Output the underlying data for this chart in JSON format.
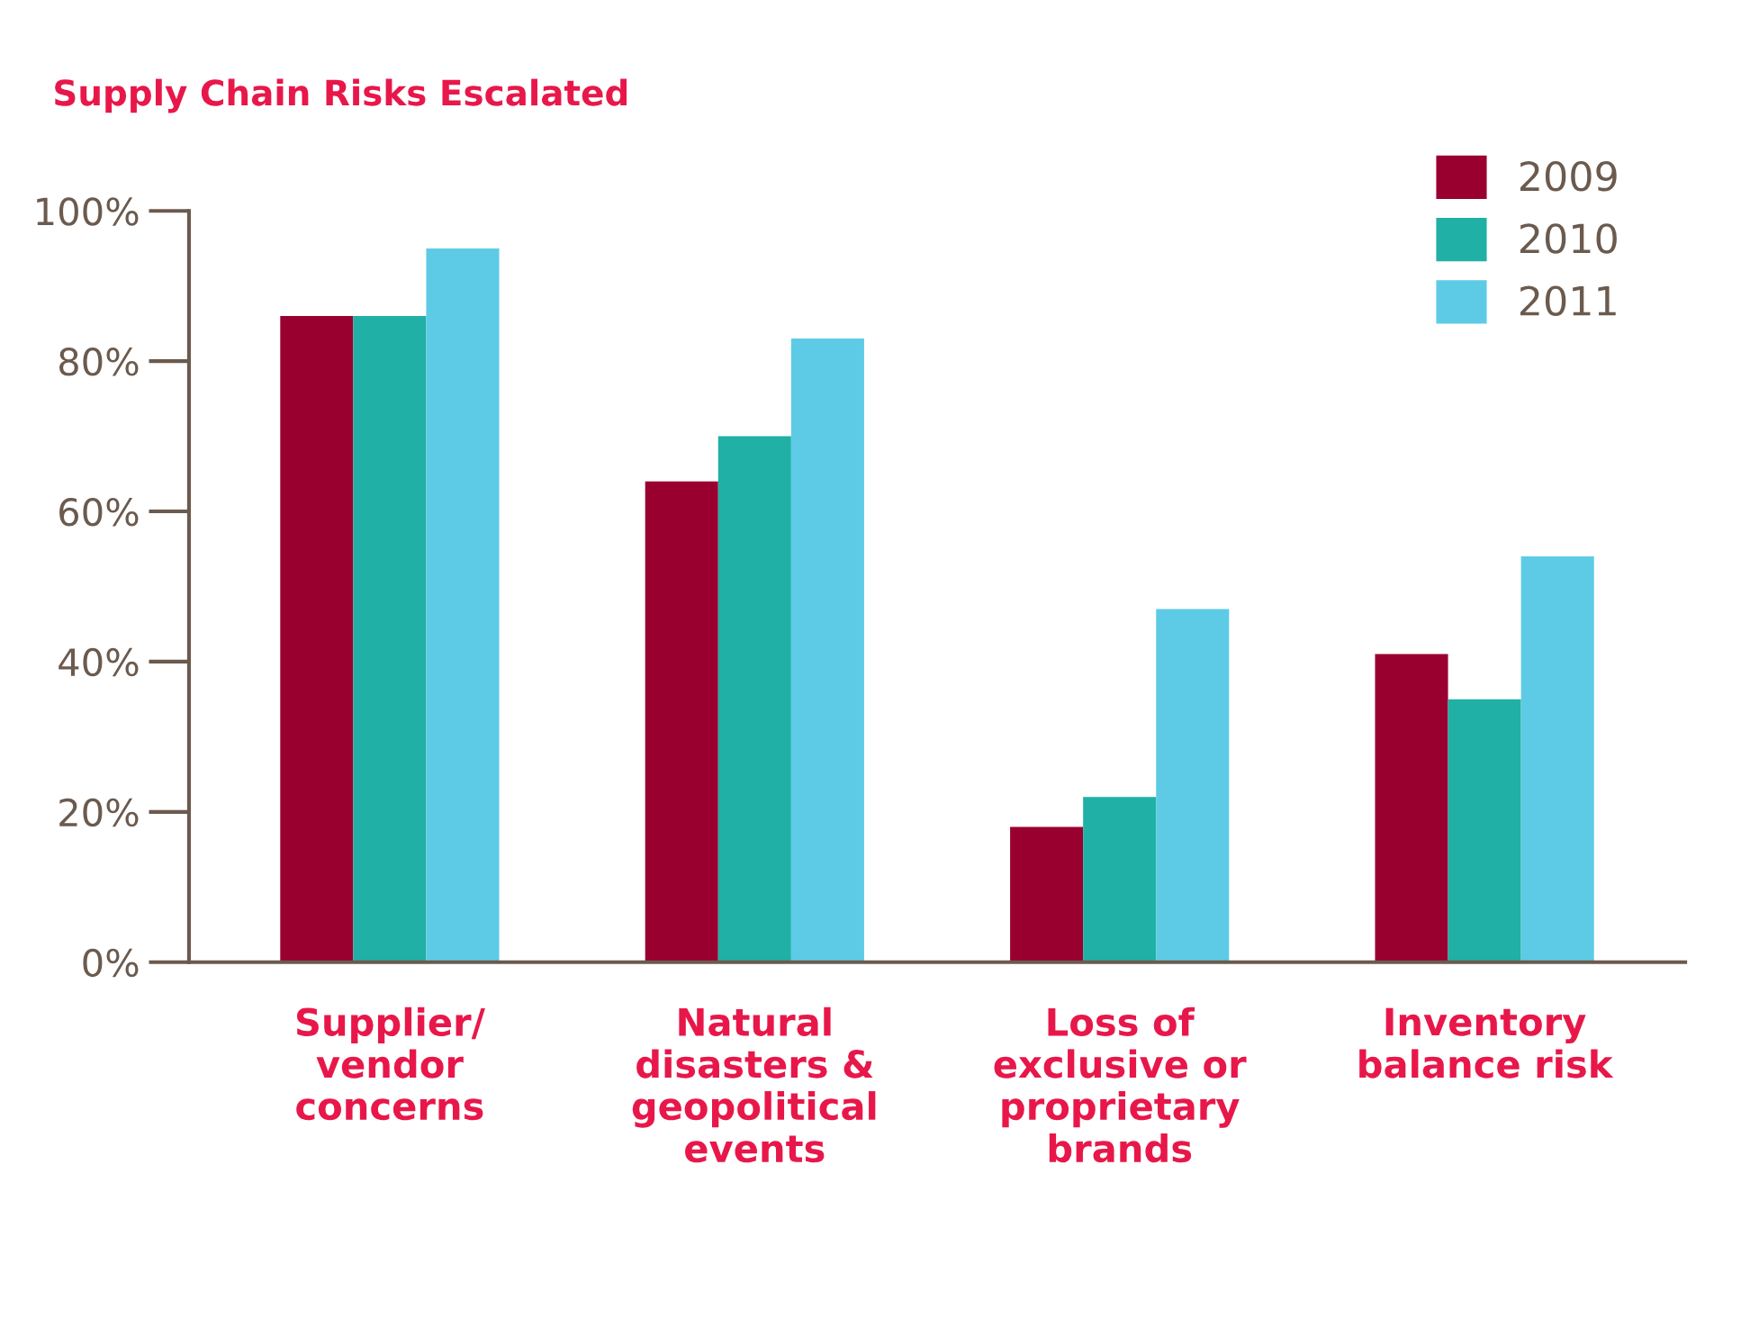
{
  "chart_data": {
    "type": "bar",
    "title": "Supply Chain Risks Escalated",
    "categories": [
      "Supplier/\nvendor\nconcerns",
      "Natural\ndisasters &\ngeopolitical\nevents",
      "Loss of\nexclusive or\nproprietary\nbrands",
      "Inventory\nbalance risk"
    ],
    "series": [
      {
        "name": "2009",
        "color": "#990030",
        "values": [
          86,
          64,
          18,
          41
        ]
      },
      {
        "name": "2010",
        "color": "#20b0a5",
        "values": [
          86,
          70,
          22,
          35
        ]
      },
      {
        "name": "2011",
        "color": "#5ecbe6",
        "values": [
          95,
          83,
          47,
          54
        ]
      }
    ],
    "ylim": [
      0,
      100
    ],
    "yticks": [
      {
        "value": 0,
        "label": "0%"
      },
      {
        "value": 20,
        "label": "20%"
      },
      {
        "value": 40,
        "label": "40%"
      },
      {
        "value": 60,
        "label": "60%"
      },
      {
        "value": 80,
        "label": "80%"
      },
      {
        "value": 100,
        "label": "100%"
      }
    ],
    "grid": false,
    "legend": "top right"
  }
}
